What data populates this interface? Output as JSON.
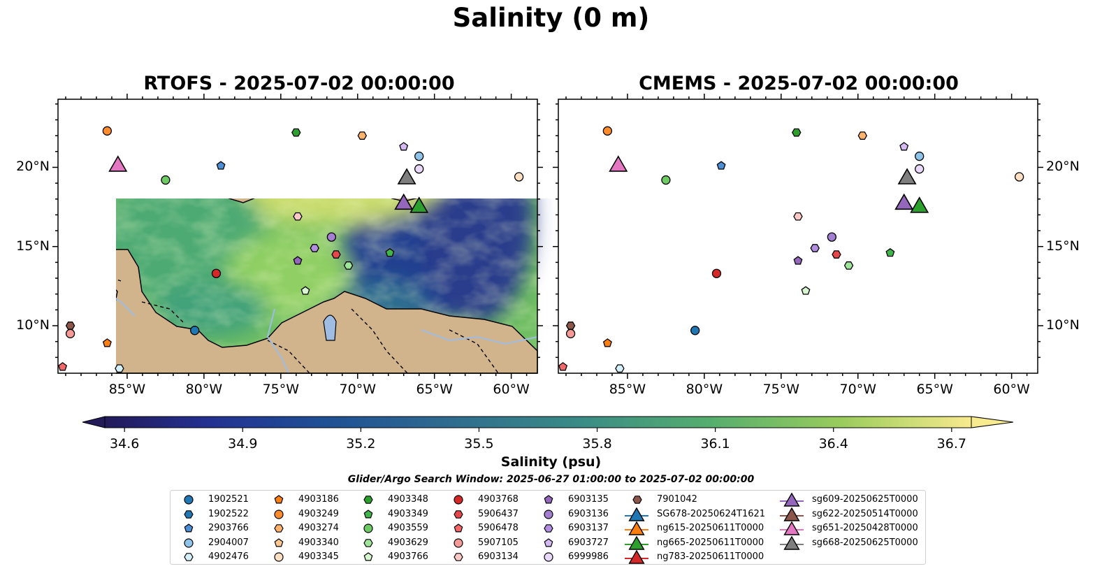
{
  "figure": {
    "title": "Salinity (0 m)",
    "panels": [
      {
        "id": "rtofs",
        "title": "RTOFS - 2025-07-02 00:00:00"
      },
      {
        "id": "cmems",
        "title": "CMEMS - 2025-07-02 00:00:00"
      }
    ],
    "lon_ticks": [
      "85°W",
      "80°W",
      "75°W",
      "70°W",
      "65°W",
      "60°W"
    ],
    "lat_ticks": [
      "20°N",
      "15°N",
      "10°N"
    ],
    "map_extent": {
      "lon": [
        -89.5,
        -58.3
      ],
      "lat": [
        7.0,
        24.3
      ]
    },
    "colors": {
      "land": "#d2b48c",
      "lake": "#9fbce3",
      "cmems_nodata": "#95b5e2"
    }
  },
  "colorbar": {
    "label": "Salinity (psu)",
    "ticks": [
      "34.6",
      "34.9",
      "35.2",
      "35.5",
      "35.8",
      "36.1",
      "36.4",
      "36.7"
    ],
    "range": [
      34.55,
      36.75
    ],
    "colormap": "haline"
  },
  "search_window": "Glider/Argo Search Window: 2025-06-27 01:00:00 to 2025-07-02 00:00:00",
  "floats": [
    {
      "id": "1902521",
      "marker": "circle",
      "color": "#1f77b4",
      "lon": -80.6,
      "lat": 9.7
    },
    {
      "id": "1902522",
      "marker": "hexagon",
      "color": "#1f77b4",
      "lon": null,
      "lat": null
    },
    {
      "id": "2903766",
      "marker": "pentagon",
      "color": "#4c8fd6",
      "lon": -78.9,
      "lat": 20.1
    },
    {
      "id": "2904007",
      "marker": "circle",
      "color": "#8ec4ea",
      "lon": -66.0,
      "lat": 20.7
    },
    {
      "id": "4902476",
      "marker": "hexagon",
      "color": "#d6f0fa",
      "lon": -85.5,
      "lat": 7.3
    },
    {
      "id": "4903186",
      "marker": "pentagon",
      "color": "#ff7f0e",
      "lon": -86.3,
      "lat": 8.9
    },
    {
      "id": "4903249",
      "marker": "circle",
      "color": "#ff8c2a",
      "lon": -86.3,
      "lat": 22.3
    },
    {
      "id": "4903274",
      "marker": "hexagon",
      "color": "#ffb36b",
      "lon": -69.7,
      "lat": 22.0
    },
    {
      "id": "4903340",
      "marker": "pentagon",
      "color": "#ffc891",
      "lon": null,
      "lat": null
    },
    {
      "id": "4903345",
      "marker": "circle",
      "color": "#ffe0c2",
      "lon": -59.5,
      "lat": 19.4
    },
    {
      "id": "4903348",
      "marker": "hexagon",
      "color": "#2ca02c",
      "lon": -74.0,
      "lat": 22.2
    },
    {
      "id": "4903349",
      "marker": "pentagon",
      "color": "#3fb54a",
      "lon": -67.9,
      "lat": 14.6
    },
    {
      "id": "4903559",
      "marker": "circle",
      "color": "#6ecb63",
      "lon": -82.5,
      "lat": 19.2
    },
    {
      "id": "4903629",
      "marker": "hexagon",
      "color": "#9ee59a",
      "lon": -70.6,
      "lat": 13.8
    },
    {
      "id": "4903766",
      "marker": "pentagon",
      "color": "#d8f7d0",
      "lon": -73.4,
      "lat": 12.2
    },
    {
      "id": "4903768",
      "marker": "circle",
      "color": "#d62728",
      "lon": -79.2,
      "lat": 13.3
    },
    {
      "id": "5906437",
      "marker": "hexagon",
      "color": "#e5474a",
      "lon": -71.4,
      "lat": 14.5
    },
    {
      "id": "5906478",
      "marker": "pentagon",
      "color": "#f26868",
      "lon": -89.2,
      "lat": 7.4
    },
    {
      "id": "5907105",
      "marker": "circle",
      "color": "#f59a96",
      "lon": -88.7,
      "lat": 9.5
    },
    {
      "id": "6903134",
      "marker": "hexagon",
      "color": "#fcc9c6",
      "lon": -73.9,
      "lat": 16.9
    },
    {
      "id": "6903135",
      "marker": "pentagon",
      "color": "#9467bd",
      "lon": -73.9,
      "lat": 14.1
    },
    {
      "id": "6903136",
      "marker": "circle",
      "color": "#a47fd1",
      "lon": -71.7,
      "lat": 15.6
    },
    {
      "id": "6903137",
      "marker": "hexagon",
      "color": "#b18ee0",
      "lon": -72.8,
      "lat": 14.9
    },
    {
      "id": "6903727",
      "marker": "pentagon",
      "color": "#d4b9f2",
      "lon": -67.0,
      "lat": 21.3
    },
    {
      "id": "6999986",
      "marker": "circle",
      "color": "#ead8fa",
      "lon": -66.0,
      "lat": 19.9
    },
    {
      "id": "7901042",
      "marker": "hexagon",
      "color": "#8c564b",
      "lon": -88.7,
      "lat": 10.0
    }
  ],
  "gliders": [
    {
      "id": "SG678-20250624T1621",
      "color": "#1f77b4",
      "lon": null,
      "lat": null
    },
    {
      "id": "ng615-20250611T0000",
      "color": "#ff7f0e",
      "lon": null,
      "lat": null
    },
    {
      "id": "ng665-20250611T0000",
      "color": "#2ca02c",
      "lon": -66.0,
      "lat": 17.6
    },
    {
      "id": "ng783-20250611T0000",
      "color": "#d62728",
      "lon": null,
      "lat": null
    },
    {
      "id": "sg609-20250625T0000",
      "color": "#9467bd",
      "lon": -67.0,
      "lat": 17.8
    },
    {
      "id": "sg622-20250514T0000",
      "color": "#8c564b",
      "lon": null,
      "lat": null
    },
    {
      "id": "sg651-20250428T0000",
      "color": "#e377c2",
      "lon": -85.6,
      "lat": 20.2
    },
    {
      "id": "sg668-20250625T0000",
      "color": "#7f7f7f",
      "lon": -66.8,
      "lat": 19.4
    }
  ]
}
